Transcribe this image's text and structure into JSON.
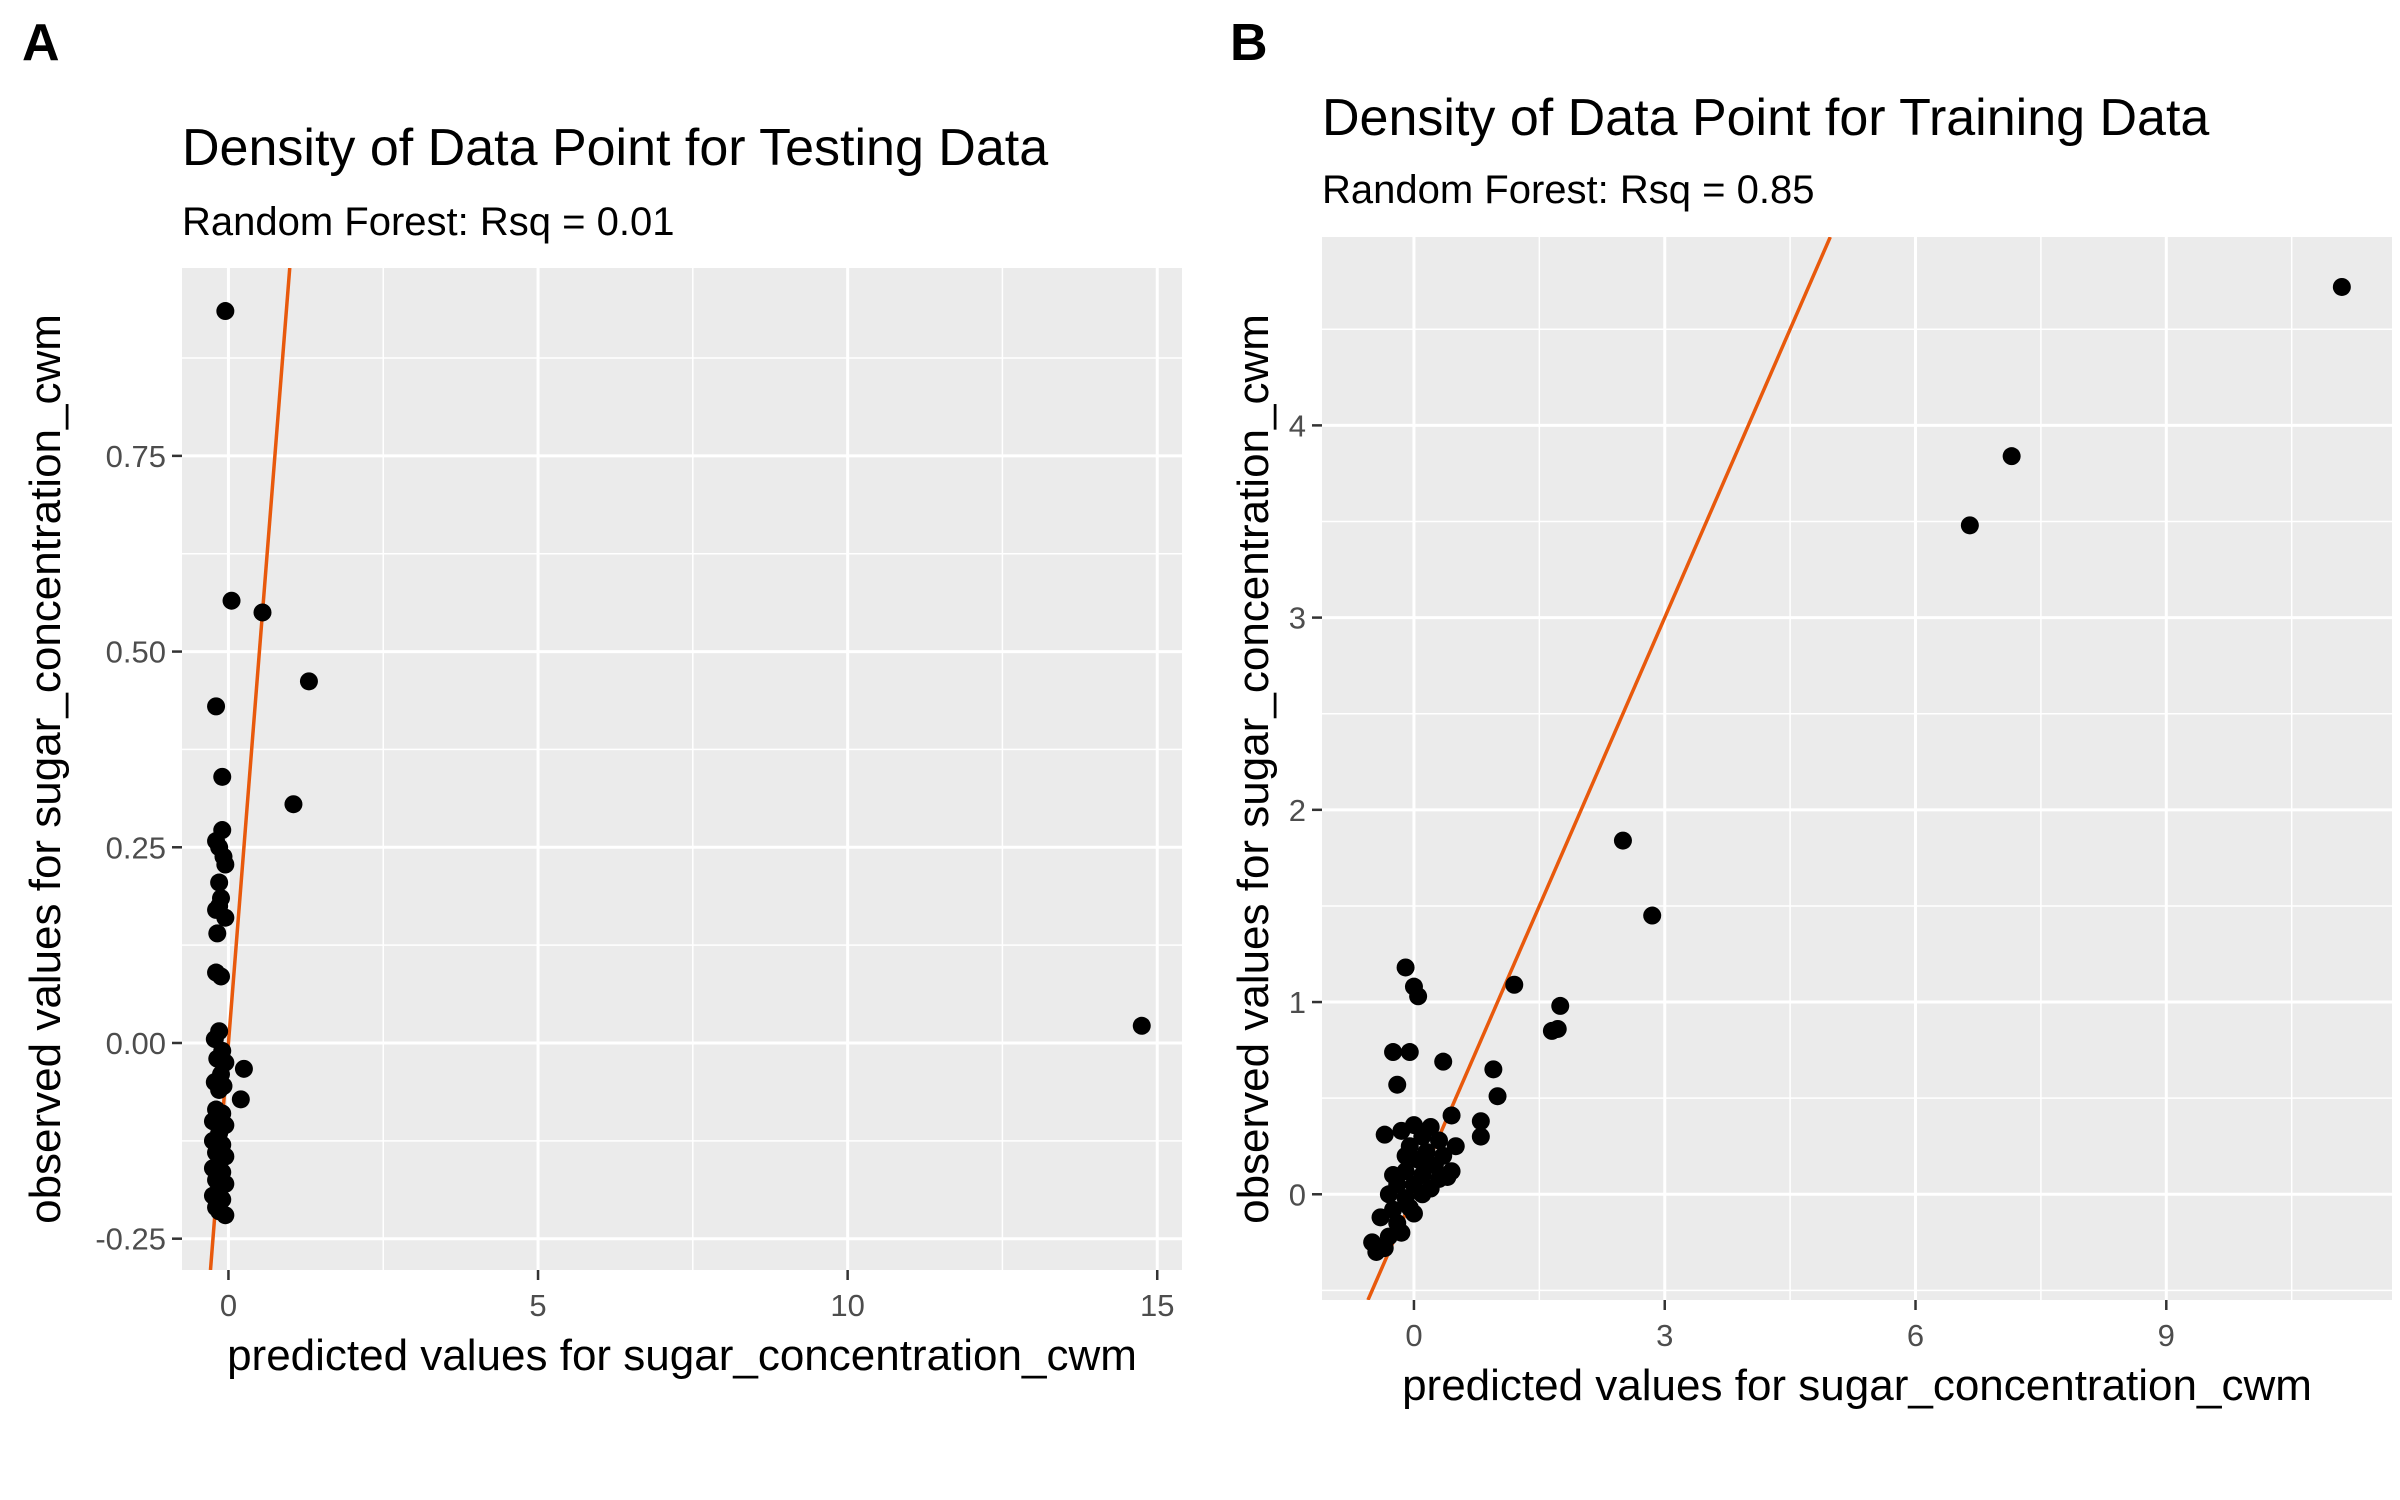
{
  "figure": {
    "panels": [
      {
        "tag": "A",
        "title": "Density of Data Point for Testing Data",
        "subtitle": "Random Forest: Rsq = 0.01",
        "xlabel": "predicted values for sugar_concentration_cwm",
        "ylabel": "observed values for sugar_concentration_cwm"
      },
      {
        "tag": "B",
        "title": "Density of Data Point for Training Data",
        "subtitle": "Random Forest: Rsq = 0.85",
        "xlabel": "predicted values for sugar_concentration_cwm",
        "ylabel": "observed values for sugar_concentration_cwm"
      }
    ]
  },
  "colors": {
    "panel_background": "#ebebeb",
    "grid": "#ffffff",
    "points": "#000000",
    "fit_line": "#e8590c"
  },
  "chart_data": [
    {
      "type": "scatter",
      "title": "Density of Data Point for Testing Data",
      "subtitle": "Random Forest: Rsq = 0.01",
      "xlabel": "predicted values for sugar_concentration_cwm",
      "ylabel": "observed values for sugar_concentration_cwm",
      "xlim": [
        -0.75,
        15.4
      ],
      "ylim": [
        -0.29,
        0.99
      ],
      "xticks": [
        0,
        5,
        10,
        15
      ],
      "xtick_labels": [
        "0",
        "5",
        "10",
        "15"
      ],
      "yticks": [
        -0.25,
        0,
        0.25,
        0.5,
        0.75
      ],
      "ytick_labels": [
        "-0.25",
        "0.00",
        "0.25",
        "0.50",
        "0.75"
      ],
      "grid": true,
      "reference_line": {
        "type": "identity",
        "slope": 1,
        "intercept": 0
      },
      "points": [
        [
          -0.05,
          0.935
        ],
        [
          0.05,
          0.565
        ],
        [
          0.55,
          0.55
        ],
        [
          1.3,
          0.462
        ],
        [
          -0.2,
          0.43
        ],
        [
          -0.1,
          0.34
        ],
        [
          1.05,
          0.305
        ],
        [
          -0.1,
          0.272
        ],
        [
          -0.2,
          0.258
        ],
        [
          -0.08,
          0.238
        ],
        [
          -0.15,
          0.25
        ],
        [
          -0.05,
          0.228
        ],
        [
          -0.15,
          0.205
        ],
        [
          -0.12,
          0.185
        ],
        [
          -0.2,
          0.17
        ],
        [
          -0.15,
          0.175
        ],
        [
          -0.05,
          0.16
        ],
        [
          -0.18,
          0.14
        ],
        [
          -0.2,
          0.09
        ],
        [
          -0.12,
          0.085
        ],
        [
          -0.15,
          0.015
        ],
        [
          -0.22,
          0.005
        ],
        [
          -0.1,
          -0.01
        ],
        [
          -0.18,
          -0.02
        ],
        [
          -0.05,
          -0.025
        ],
        [
          0.25,
          -0.033
        ],
        [
          -0.12,
          -0.04
        ],
        [
          -0.22,
          -0.05
        ],
        [
          -0.08,
          -0.055
        ],
        [
          -0.15,
          -0.06
        ],
        [
          0.2,
          -0.072
        ],
        [
          -0.2,
          -0.085
        ],
        [
          -0.1,
          -0.09
        ],
        [
          -0.25,
          -0.1
        ],
        [
          -0.05,
          -0.105
        ],
        [
          -0.15,
          -0.115
        ],
        [
          -0.25,
          -0.125
        ],
        [
          -0.1,
          -0.13
        ],
        [
          -0.2,
          -0.14
        ],
        [
          -0.05,
          -0.145
        ],
        [
          -0.15,
          -0.155
        ],
        [
          -0.25,
          -0.16
        ],
        [
          -0.1,
          -0.165
        ],
        [
          -0.2,
          -0.175
        ],
        [
          -0.05,
          -0.18
        ],
        [
          -0.15,
          -0.185
        ],
        [
          -0.25,
          -0.195
        ],
        [
          -0.1,
          -0.2
        ],
        [
          -0.2,
          -0.21
        ],
        [
          -0.05,
          -0.22
        ],
        [
          -0.15,
          -0.215
        ],
        [
          14.75,
          0.022
        ]
      ]
    },
    {
      "type": "scatter",
      "title": "Density of Data Point for Training Data",
      "subtitle": "Random Forest: Rsq = 0.85",
      "xlabel": "predicted values for sugar_concentration_cwm",
      "ylabel": "observed values for sugar_concentration_cwm",
      "xlim": [
        -1.1,
        11.7
      ],
      "ylim": [
        -0.55,
        4.98
      ],
      "xticks": [
        0,
        3,
        6,
        9
      ],
      "xtick_labels": [
        "0",
        "3",
        "6",
        "9"
      ],
      "yticks": [
        0,
        1,
        2,
        3,
        4
      ],
      "ytick_labels": [
        "0",
        "1",
        "2",
        "3",
        "4"
      ],
      "grid": true,
      "reference_line": {
        "type": "identity",
        "slope": 1,
        "intercept": 0
      },
      "points": [
        [
          11.1,
          4.72
        ],
        [
          7.15,
          3.84
        ],
        [
          6.65,
          3.48
        ],
        [
          2.5,
          1.84
        ],
        [
          2.85,
          1.45
        ],
        [
          -0.1,
          1.18
        ],
        [
          0.0,
          1.08
        ],
        [
          1.2,
          1.09
        ],
        [
          0.05,
          1.03
        ],
        [
          1.75,
          0.98
        ],
        [
          1.65,
          0.85
        ],
        [
          1.72,
          0.86
        ],
        [
          -0.25,
          0.74
        ],
        [
          -0.05,
          0.74
        ],
        [
          0.35,
          0.69
        ],
        [
          0.95,
          0.65
        ],
        [
          -0.2,
          0.57
        ],
        [
          1.0,
          0.51
        ],
        [
          0.45,
          0.41
        ],
        [
          0.8,
          0.38
        ],
        [
          -0.35,
          0.31
        ],
        [
          -0.15,
          0.33
        ],
        [
          0.0,
          0.36
        ],
        [
          0.2,
          0.35
        ],
        [
          0.1,
          0.3
        ],
        [
          0.3,
          0.28
        ],
        [
          0.5,
          0.25
        ],
        [
          0.8,
          0.3
        ],
        [
          -0.05,
          0.25
        ],
        [
          0.15,
          0.22
        ],
        [
          0.35,
          0.2
        ],
        [
          0.05,
          0.18
        ],
        [
          0.25,
          0.15
        ],
        [
          0.45,
          0.12
        ],
        [
          -0.1,
          0.12
        ],
        [
          0.1,
          0.1
        ],
        [
          0.3,
          0.08
        ],
        [
          0.4,
          0.09
        ],
        [
          -0.2,
          0.05
        ],
        [
          0.0,
          0.05
        ],
        [
          0.2,
          0.03
        ],
        [
          -0.3,
          0.0
        ],
        [
          -0.1,
          -0.02
        ],
        [
          0.1,
          0.0
        ],
        [
          -0.25,
          -0.08
        ],
        [
          -0.05,
          -0.07
        ],
        [
          -0.4,
          -0.12
        ],
        [
          -0.2,
          -0.15
        ],
        [
          -0.5,
          -0.25
        ],
        [
          -0.3,
          -0.22
        ],
        [
          -0.45,
          -0.3
        ],
        [
          -0.15,
          -0.2
        ],
        [
          -0.35,
          -0.28
        ],
        [
          0.0,
          -0.1
        ],
        [
          -0.1,
          0.2
        ],
        [
          0.15,
          0.15
        ],
        [
          -0.25,
          0.1
        ]
      ]
    }
  ]
}
